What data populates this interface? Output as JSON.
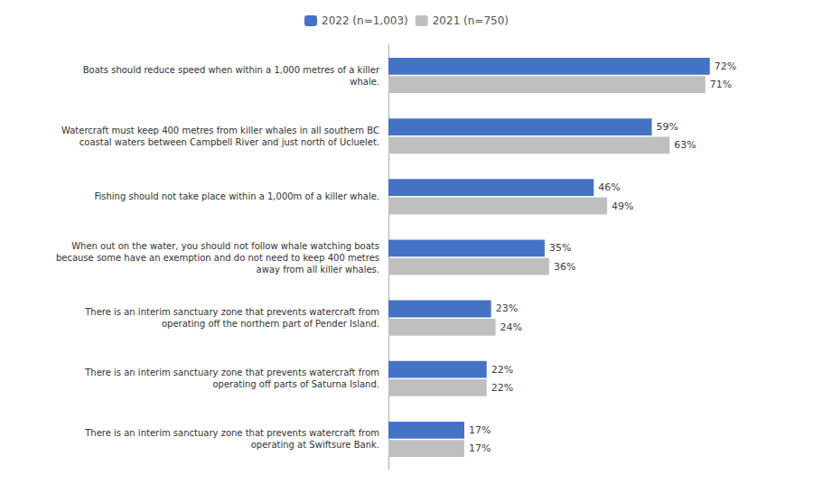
{
  "chart_data": {
    "type": "bar",
    "orientation": "horizontal",
    "categories": [
      "Boats should reduce speed when within a 1,000 metres of a killer\nwhale.",
      "Watercraft must keep 400 metres from killer whales in all southern BC\ncoastal waters between Campbell River and just north of Ucluelet.",
      "Fishing should not take place within a 1,000m of a killer whale.",
      "When out on the water, you should not follow whale watching boats\nbecause some have an exemption and do not need to keep 400 metres\naway from all killer whales.",
      "There is an interim sanctuary zone that prevents watercraft from\noperating off the northern part of Pender Island.",
      "There is an interim sanctuary zone that prevents watercraft from\noperating off parts of Saturna Island.",
      "There is an interim sanctuary zone that prevents watercraft from\noperating at Swiftsure Bank."
    ],
    "series": [
      {
        "name": "2022 (n=1,003)",
        "color": "#4472C4",
        "values": [
          72,
          59,
          46,
          35,
          23,
          22,
          17
        ],
        "value_labels": [
          "72%",
          "59%",
          "46%",
          "35%",
          "23%",
          "22%",
          "17%"
        ]
      },
      {
        "name": "2021 (n=750)",
        "color": "#BFBFBF",
        "values": [
          71,
          63,
          49,
          36,
          24,
          22,
          17
        ],
        "value_labels": [
          "71%",
          "63%",
          "49%",
          "36%",
          "24%",
          "22%",
          "17%"
        ]
      }
    ],
    "xlim": [
      0,
      85
    ],
    "grid": false,
    "legend": "top",
    "data_labels": true,
    "tick_labels": "y"
  }
}
